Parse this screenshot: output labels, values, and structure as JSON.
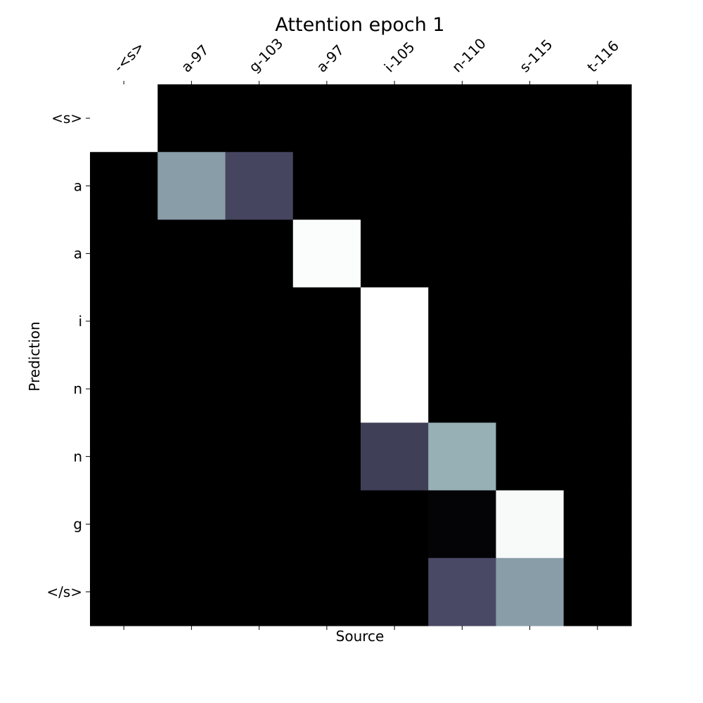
{
  "chart_data": {
    "type": "heatmap",
    "title": "Attention epoch 1",
    "xlabel": "Source",
    "ylabel": "Prediction",
    "x_tick_labels": [
      "-<s>",
      "a-97",
      "g-103",
      "a-97",
      "i-105",
      "n-110",
      "s-115",
      "t-116"
    ],
    "y_tick_labels": [
      "<s>",
      "a",
      "a",
      "i",
      "n",
      "n",
      "g",
      "</s>"
    ],
    "x_tick_position": "top",
    "colormap": "bone",
    "value_range": [
      0,
      1
    ],
    "grid": false,
    "matrix": [
      [
        1.0,
        0.0,
        0.0,
        0.0,
        0.0,
        0.0,
        0.0,
        0.0
      ],
      [
        0.0,
        0.62,
        0.32,
        0.0,
        0.0,
        0.0,
        0.0,
        0.0
      ],
      [
        0.0,
        0.0,
        0.0,
        0.99,
        0.0,
        0.0,
        0.0,
        0.0
      ],
      [
        0.0,
        0.0,
        0.0,
        0.0,
        1.0,
        0.0,
        0.0,
        0.0
      ],
      [
        0.0,
        0.0,
        0.0,
        0.0,
        1.0,
        0.0,
        0.0,
        0.0
      ],
      [
        0.0,
        0.0,
        0.0,
        0.0,
        0.29,
        0.68,
        0.0,
        0.0
      ],
      [
        0.0,
        0.0,
        0.0,
        0.0,
        0.0,
        0.02,
        0.98,
        0.0
      ],
      [
        0.0,
        0.0,
        0.0,
        0.0,
        0.0,
        0.34,
        0.62,
        0.0
      ]
    ]
  }
}
